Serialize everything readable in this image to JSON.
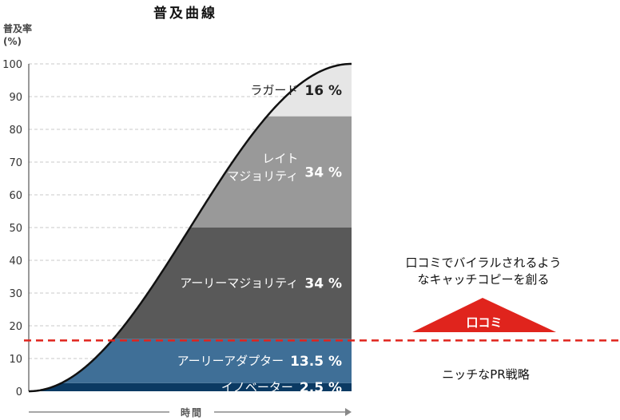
{
  "colors": {
    "innovators": "#0b3a63",
    "early_adopters": "#3f6f97",
    "early_majority": "#595959",
    "late_majority": "#999999",
    "laggards": "#e6e6e6",
    "threshold_line": "#e0241d",
    "triangle": "#e0241d"
  },
  "chart_data": {
    "type": "area",
    "title": "普及曲線",
    "ylabel_line1": "普及率",
    "ylabel_line2": "(%)",
    "xlabel": "時間",
    "ylim": [
      0,
      100
    ],
    "yticks": [
      0,
      10,
      20,
      30,
      40,
      50,
      60,
      70,
      80,
      90,
      100
    ],
    "curve": "s-curve",
    "segments": [
      {
        "name": "イノベーター",
        "pct_label": "2.5 %",
        "from": 0,
        "to": 2.5
      },
      {
        "name": "アーリーアダプター",
        "pct_label": "13.5 %",
        "from": 2.5,
        "to": 16
      },
      {
        "name": "アーリーマジョリティ",
        "pct_label": "34 %",
        "from": 16,
        "to": 50
      },
      {
        "name_lines": [
          "レイト",
          "マジョリティ"
        ],
        "pct_label": "34 %",
        "from": 50,
        "to": 84
      },
      {
        "name": "ラガード",
        "pct_label": "16 %",
        "from": 84,
        "to": 100
      }
    ],
    "threshold": 16
  },
  "annotations": {
    "viral_line1": "口コミでバイラルされるよう",
    "viral_line2": "なキャッチコピーを創る",
    "word_of_mouth": "口コミ",
    "niche_pr": "ニッチなPR戦略"
  }
}
